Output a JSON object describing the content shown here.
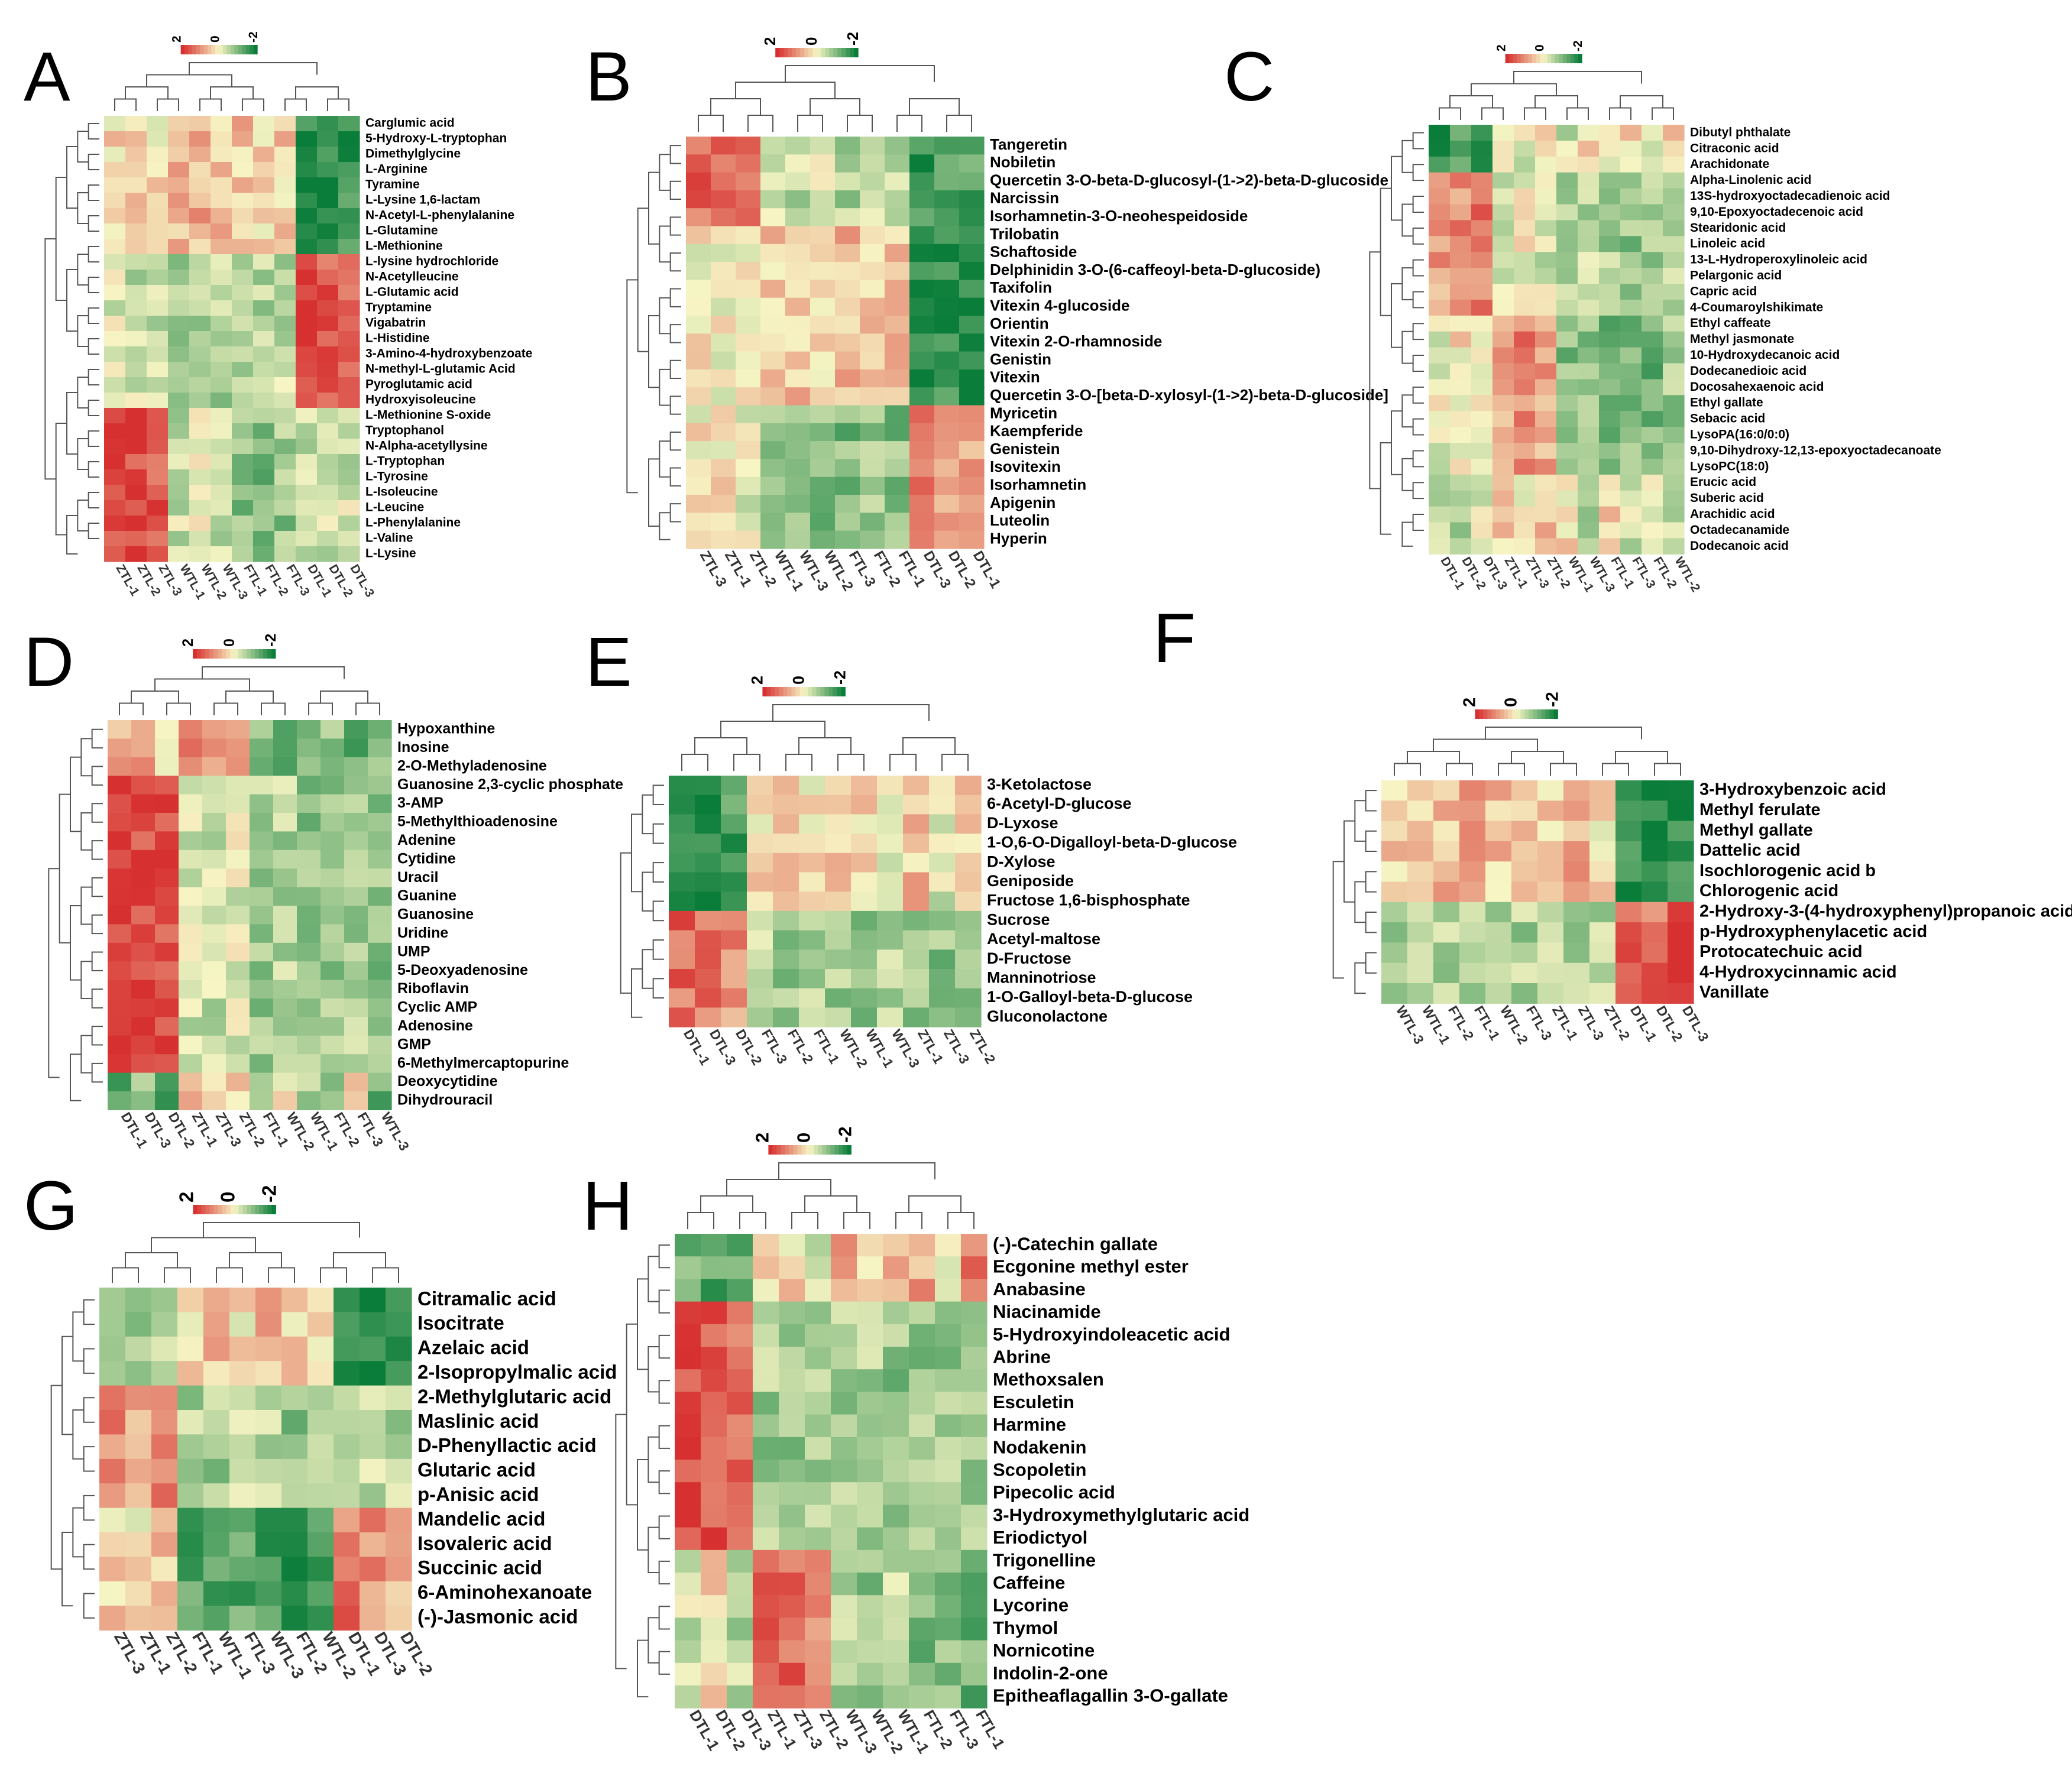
{
  "figure_title": "",
  "colors": {
    "high": "#d73030",
    "mid": "#f7f5c4",
    "low": "#0b7d3a"
  },
  "chart_data": [
    {
      "type": "heatmap",
      "panel": "A",
      "scale_ticks": [
        "2",
        "0",
        "-2"
      ],
      "columns": [
        "ZTL-1",
        "ZTL-2",
        "ZTL-3",
        "WTL-1",
        "WTL-2",
        "WTL-3",
        "FTL-1",
        "FTL-2",
        "FTL-3",
        "DTL-1",
        "DTL-2",
        "DTL-3"
      ],
      "rows": [
        "Carglumic acid",
        "5-Hydroxy-L-tryptophan",
        "Dimethylglycine",
        "L-Arginine",
        "Tyramine",
        "L-Lysine 1,6-lactam",
        "N-Acetyl-L-phenylalanine",
        "L-Glutamine",
        "L-Methionine",
        "L-lysine hydrochloride",
        "N-Acetylleucine",
        "L-Glutamic acid",
        "Tryptamine",
        "Vigabatrin",
        "L-Histidine",
        "3-Amino-4-hydroxybenzoate",
        "N-methyl-L-glutamic Acid",
        "Pyroglutamic acid",
        "Hydroxyisoleucine",
        "L-Methionine S-oxide",
        "Tryptophanol",
        "N-Alpha-acetyllysine",
        "L-Tryptophan",
        "L-Tyrosine",
        "L-Isoleucine",
        "L-Leucine",
        "L-Phenylalanine",
        "L-Valine",
        "L-Lysine"
      ],
      "row_groups": [
        {
          "start": 0,
          "end": 8,
          "pattern": [
            0.3,
            0.4,
            0.2,
            0.6,
            0.7,
            0.5,
            0.5,
            0.3,
            0.4,
            -1.8,
            -1.9,
            -1.7
          ]
        },
        {
          "start": 9,
          "end": 18,
          "pattern": [
            -0.3,
            -0.4,
            -0.5,
            -0.6,
            -0.5,
            -0.6,
            -0.7,
            -0.6,
            -0.5,
            1.9,
            1.6,
            1.3
          ]
        },
        {
          "start": 19,
          "end": 28,
          "pattern": [
            1.9,
            1.8,
            1.6,
            -0.4,
            -0.2,
            -0.5,
            -0.9,
            -1.0,
            -0.8,
            -0.3,
            -0.4,
            -0.3
          ]
        }
      ]
    },
    {
      "type": "heatmap",
      "panel": "B",
      "scale_ticks": [
        "2",
        "0",
        "-2"
      ],
      "columns": [
        "ZTL-3",
        "ZTL-1",
        "ZTL-2",
        "WTL-1",
        "WTL-3",
        "WTL-2",
        "FTL-3",
        "FTL-2",
        "FTL-1",
        "DTL-3",
        "DTL-2",
        "DTL-1"
      ],
      "rows": [
        "Tangeretin",
        "Nobiletin",
        "Quercetin 3-O-beta-D-glucosyl-(1->2)-beta-D-glucoside",
        "Narcissin",
        "Isorhamnetin-3-O-neohespeidoside",
        "Trilobatin",
        "Schaftoside",
        "Delphinidin 3-O-(6-caffeoyl-beta-D-glucoside)",
        "Taxifolin",
        "Vitexin 4-glucoside",
        "Orientin",
        "Vitexin 2-O-rhamnoside",
        "Genistin",
        "Vitexin",
        "Quercetin 3-O-[beta-D-xylosyl-(1->2)-beta-D-glucoside]",
        "Myricetin",
        "Kaempferide",
        "Genistein",
        "Isovitexin",
        "Isorhamnetin",
        "Apigenin",
        "Luteolin",
        "Hyperin"
      ],
      "row_groups": [
        {
          "start": 0,
          "end": 4,
          "pattern": [
            1.4,
            1.2,
            1.6,
            -0.4,
            -0.5,
            -0.3,
            -0.6,
            -0.5,
            -0.4,
            -1.6,
            -1.5,
            -1.4
          ]
        },
        {
          "start": 5,
          "end": 14,
          "pattern": [
            0.1,
            0.0,
            0.2,
            0.4,
            0.5,
            0.3,
            0.6,
            0.4,
            0.5,
            -1.8,
            -1.7,
            -1.9
          ]
        },
        {
          "start": 15,
          "end": 22,
          "pattern": [
            0.1,
            0.2,
            -0.1,
            -0.8,
            -0.7,
            -0.9,
            -1.0,
            -0.8,
            -0.9,
            1.2,
            1.0,
            0.9
          ]
        }
      ]
    },
    {
      "type": "heatmap",
      "panel": "C",
      "scale_ticks": [
        "2",
        "0",
        "-2"
      ],
      "columns": [
        "DTL-1",
        "DTL-2",
        "DTL-3",
        "ZTL-1",
        "ZTL-3",
        "ZTL-2",
        "WTL-1",
        "WTL-3",
        "FTL-1",
        "FTL-3",
        "FTL-2",
        "WTL-2"
      ],
      "rows": [
        "Dibutyl phthalate",
        "Citraconic acid",
        "Arachidonate",
        "Alpha-Linolenic acid",
        "13S-hydroxyoctadecadienoic acid",
        "9,10-Epoxyoctadecenoic acid",
        "Stearidonic acid",
        "Linoleic acid",
        "13-L-Hydroperoxylinoleic acid",
        "Pelargonic acid",
        "Capric acid",
        "4-Coumaroylshikimate",
        "Ethyl caffeate",
        "Methyl jasmonate",
        "10-Hydroxydecanoic acid",
        "Dodecanedioic acid",
        "Docosahexaenoic acid",
        "Ethyl gallate",
        "Sebacic acid",
        "LysoPA(16:0/0:0)",
        "9,10-Dihydroxy-12,13-epoxyoctadecanoate",
        "LysoPC(18:0)",
        "Erucic acid",
        "Suberic acid",
        "Arachidic acid",
        "Octadecanamide",
        "Dodecanoic acid"
      ],
      "row_groups": [
        {
          "start": 0,
          "end": 2,
          "pattern": [
            -1.6,
            -1.5,
            -1.7,
            0.3,
            -0.2,
            0.4,
            -0.3,
            0.2,
            -0.4,
            0.3,
            -0.5,
            0.5
          ]
        },
        {
          "start": 3,
          "end": 11,
          "pattern": [
            0.8,
            1.0,
            1.2,
            -0.2,
            0.1,
            -0.3,
            -0.6,
            -0.5,
            -0.7,
            -0.8,
            -0.6,
            -0.5
          ]
        },
        {
          "start": 12,
          "end": 21,
          "pattern": [
            -0.1,
            0.2,
            0.0,
            0.9,
            1.1,
            0.8,
            -0.9,
            -0.8,
            -1.0,
            -0.9,
            -1.1,
            -0.8
          ]
        },
        {
          "start": 22,
          "end": 26,
          "pattern": [
            -0.4,
            -0.6,
            -0.3,
            0.4,
            -0.2,
            0.6,
            0.2,
            -0.5,
            0.3,
            -0.4,
            0.1,
            -0.6
          ]
        }
      ]
    },
    {
      "type": "heatmap",
      "panel": "D",
      "scale_ticks": [
        "2",
        "0",
        "-2"
      ],
      "columns": [
        "DTL-1",
        "DTL-3",
        "DTL-2",
        "ZTL-1",
        "ZTL-3",
        "ZTL-2",
        "FTL-1",
        "WTL-2",
        "WTL-1",
        "FTL-2",
        "FTL-3",
        "WTL-3"
      ],
      "rows": [
        "Hypoxanthine",
        "Inosine",
        "2-O-Methyladenosine",
        "Guanosine 2,3-cyclic phosphate",
        "3-AMP",
        "5-Methylthioadenosine",
        "Adenine",
        "Cytidine",
        "Uracil",
        "Guanine",
        "Guanosine",
        "Uridine",
        "UMP",
        "5-Deoxyadenosine",
        "Riboflavin",
        "Cyclic AMP",
        "Adenosine",
        "GMP",
        "6-Methylmercaptopurine",
        "Deoxycytidine",
        "Dihydrouracil"
      ],
      "row_groups": [
        {
          "start": 0,
          "end": 2,
          "pattern": [
            0.6,
            1.0,
            0.4,
            1.2,
            1.0,
            0.8,
            -0.9,
            -1.0,
            -1.1,
            -0.9,
            -1.2,
            -1.0
          ]
        },
        {
          "start": 3,
          "end": 18,
          "pattern": [
            2.0,
            1.8,
            1.6,
            -0.3,
            -0.4,
            -0.2,
            -0.7,
            -0.6,
            -0.8,
            -0.7,
            -0.6,
            -0.8
          ]
        },
        {
          "start": 19,
          "end": 20,
          "pattern": [
            -1.2,
            -1.0,
            -1.3,
            0.6,
            0.3,
            0.5,
            -0.4,
            0.2,
            -0.5,
            -0.6,
            0.1,
            -1.2
          ]
        }
      ]
    },
    {
      "type": "heatmap",
      "panel": "E",
      "scale_ticks": [
        "2",
        "0",
        "-2"
      ],
      "columns": [
        "DTL-1",
        "DTL-3",
        "DTL-2",
        "FTL-3",
        "FTL-2",
        "FTL-1",
        "WTL-2",
        "WTL-1",
        "WTL-3",
        "ZTL-1",
        "ZTL-3",
        "ZTL-2"
      ],
      "rows": [
        "3-Ketolactose",
        "6-Acetyl-D-glucose",
        "D-Lyxose",
        "1-O,6-O-Digalloyl-beta-D-glucose",
        "D-Xylose",
        "Geniposide",
        "Fructose 1,6-bisphosphate",
        "Sucrose",
        "Acetyl-maltose",
        "D-Fructose",
        "Manninotriose",
        "1-O-Galloyl-beta-D-glucose",
        "Gluconolactone"
      ],
      "row_groups": [
        {
          "start": 0,
          "end": 6,
          "pattern": [
            -1.7,
            -1.6,
            -1.5,
            0.2,
            0.4,
            0.1,
            0.3,
            0.2,
            0.0,
            0.5,
            -0.2,
            0.3
          ]
        },
        {
          "start": 7,
          "end": 12,
          "pattern": [
            1.4,
            1.2,
            1.0,
            -0.6,
            -0.7,
            -0.6,
            -0.7,
            -0.8,
            -0.6,
            -0.7,
            -0.9,
            -0.8
          ]
        }
      ]
    },
    {
      "type": "heatmap",
      "panel": "F",
      "scale_ticks": [
        "2",
        "0",
        "-2"
      ],
      "columns": [
        "WTL-3",
        "WTL-1",
        "FTL-2",
        "FTL-1",
        "WTL-2",
        "FTL-3",
        "ZTL-1",
        "ZTL-3",
        "ZTL-2",
        "DTL-1",
        "DTL-2",
        "DTL-3"
      ],
      "rows": [
        "3-Hydroxybenzoic acid",
        "Methyl ferulate",
        "Methyl gallate",
        "Dattelic acid",
        "Isochlorogenic acid b",
        "Chlorogenic acid",
        "2-Hydroxy-3-(4-hydroxyphenyl)propanoic acid",
        "p-Hydroxyphenylacetic acid",
        "Protocatechuic acid",
        "4-Hydroxycinnamic acid",
        "Vanillate"
      ],
      "row_groups": [
        {
          "start": 0,
          "end": 5,
          "pattern": [
            0.3,
            0.4,
            0.6,
            0.7,
            0.5,
            0.4,
            0.3,
            0.8,
            0.2,
            -1.8,
            -1.9,
            -1.7
          ]
        },
        {
          "start": 6,
          "end": 10,
          "pattern": [
            -0.6,
            -0.6,
            -0.6,
            -0.6,
            -0.6,
            -0.6,
            -0.6,
            -0.6,
            -0.6,
            1.5,
            1.3,
            1.7
          ]
        }
      ]
    },
    {
      "type": "heatmap",
      "panel": "G",
      "scale_ticks": [
        "2",
        "0",
        "-2"
      ],
      "columns": [
        "ZTL-3",
        "ZTL-1",
        "ZTL-2",
        "FTL-1",
        "WTL-1",
        "FTL-3",
        "WTL-3",
        "FTL-2",
        "WTL-2",
        "DTL-1",
        "DTL-3",
        "DTL-2"
      ],
      "rows": [
        "Citramalic acid",
        "Isocitrate",
        "Azelaic acid",
        "2-Isopropylmalic acid",
        "2-Methylglutaric acid",
        "Maslinic acid",
        "D-Phenyllactic acid",
        "Glutaric acid",
        "p-Anisic acid",
        "Mandelic acid",
        "Isovaleric acid",
        "Succinic acid",
        "6-Aminohexanoate",
        "(-)-Jasmonic acid"
      ],
      "row_groups": [
        {
          "start": 0,
          "end": 3,
          "pattern": [
            -0.5,
            -0.6,
            -0.4,
            0.3,
            0.5,
            0.2,
            0.6,
            0.4,
            0.3,
            -1.8,
            -1.9,
            -1.8
          ]
        },
        {
          "start": 4,
          "end": 8,
          "pattern": [
            1.0,
            0.9,
            1.2,
            -0.6,
            -0.7,
            -0.5,
            -0.6,
            -0.8,
            -0.7,
            -0.5,
            -0.4,
            -0.6
          ]
        },
        {
          "start": 9,
          "end": 13,
          "pattern": [
            0.3,
            0.2,
            0.4,
            -1.4,
            -1.5,
            -1.3,
            -1.4,
            -1.5,
            -1.4,
            1.3,
            0.9,
            0.6
          ]
        }
      ]
    },
    {
      "type": "heatmap",
      "panel": "H",
      "scale_ticks": [
        "2",
        "0",
        "-2"
      ],
      "columns": [
        "DTL-1",
        "DTL-2",
        "DTL-3",
        "ZTL-1",
        "ZTL-3",
        "ZTL-2",
        "WTL-3",
        "WTL-2",
        "WTL-1",
        "FTL-2",
        "FTL-3",
        "FTL-1"
      ],
      "rows": [
        "(-)-Catechin gallate",
        "Ecgonine methyl ester",
        "Anabasine",
        "Niacinamide",
        "5-Hydroxyindoleacetic acid",
        "Abrine",
        "Methoxsalen",
        "Esculetin",
        "Harmine",
        "Nodakenin",
        "Scopoletin",
        "Pipecolic acid",
        "3-Hydroxymethylglutaric acid",
        "Eriodictyol",
        "Trigonelline",
        "Caffeine",
        "Lycorine",
        "Thymol",
        "Nornicotine",
        "Indolin-2-one",
        "Epitheaflagallin 3-O-gallate"
      ],
      "row_groups": [
        {
          "start": 0,
          "end": 2,
          "pattern": [
            -1.2,
            -1.4,
            -1.3,
            0.1,
            0.3,
            -0.2,
            0.9,
            0.4,
            0.6,
            0.8,
            -0.3,
            1.1
          ]
        },
        {
          "start": 3,
          "end": 13,
          "pattern": [
            1.8,
            1.6,
            1.4,
            -0.7,
            -0.8,
            -0.6,
            -0.7,
            -0.7,
            -0.8,
            -0.8,
            -0.7,
            -0.8
          ]
        },
        {
          "start": 14,
          "end": 20,
          "pattern": [
            -0.4,
            0.2,
            -0.6,
            1.3,
            1.5,
            1.2,
            -0.6,
            -0.8,
            -0.5,
            -1.0,
            -0.9,
            -1.1
          ]
        }
      ]
    }
  ]
}
